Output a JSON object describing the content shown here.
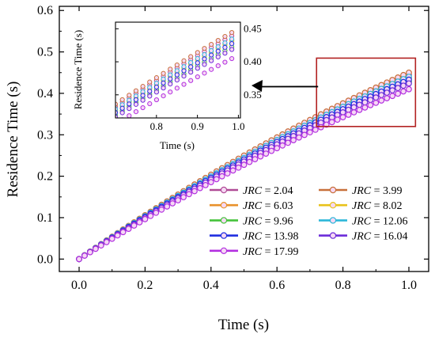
{
  "chart_data": {
    "type": "line",
    "title": "",
    "xlabel": "Time (s)",
    "ylabel": "Residence Time (s)",
    "xlim": [
      -0.06,
      1.06
    ],
    "ylim": [
      -0.03,
      0.61
    ],
    "xticks": [
      "0.0",
      "0.2",
      "0.4",
      "0.6",
      "0.8",
      "1.0"
    ],
    "yticks": [
      "0.0",
      "0.1",
      "0.2",
      "0.3",
      "0.4",
      "0.5",
      "0.6"
    ],
    "grid": false,
    "legend": {
      "placement": "bottom-right",
      "columns": 2,
      "prefix": "JRC",
      "separator": " = "
    },
    "series": [
      {
        "name": "2.04",
        "color": "#b04a96",
        "end_value": 0.445
      },
      {
        "name": "3.99",
        "color": "#c8703a",
        "end_value": 0.45
      },
      {
        "name": "6.03",
        "color": "#e8912b",
        "end_value": 0.438
      },
      {
        "name": "8.02",
        "color": "#e8c21a",
        "end_value": 0.437
      },
      {
        "name": "9.96",
        "color": "#44c23a",
        "end_value": 0.428
      },
      {
        "name": "12.06",
        "color": "#2bb7d9",
        "end_value": 0.44
      },
      {
        "name": "13.98",
        "color": "#1f2de0",
        "end_value": 0.433
      },
      {
        "name": "16.04",
        "color": "#6b2bd9",
        "end_value": 0.424
      },
      {
        "name": "17.99",
        "color": "#b22fe0",
        "end_value": 0.41
      }
    ],
    "inset": {
      "xlabel": "Time (s)",
      "ylabel": "Residence Time (s)",
      "xlim": [
        0.7,
        1.005
      ],
      "ylim": [
        0.315,
        0.46
      ],
      "xticks": [
        "0.8",
        "0.9",
        "1.0"
      ],
      "yticks": [
        "0.35",
        "0.40",
        "0.45"
      ],
      "zoom_region": {
        "x": [
          0.72,
          1.02
        ],
        "y": [
          0.32,
          0.485
        ]
      }
    }
  }
}
